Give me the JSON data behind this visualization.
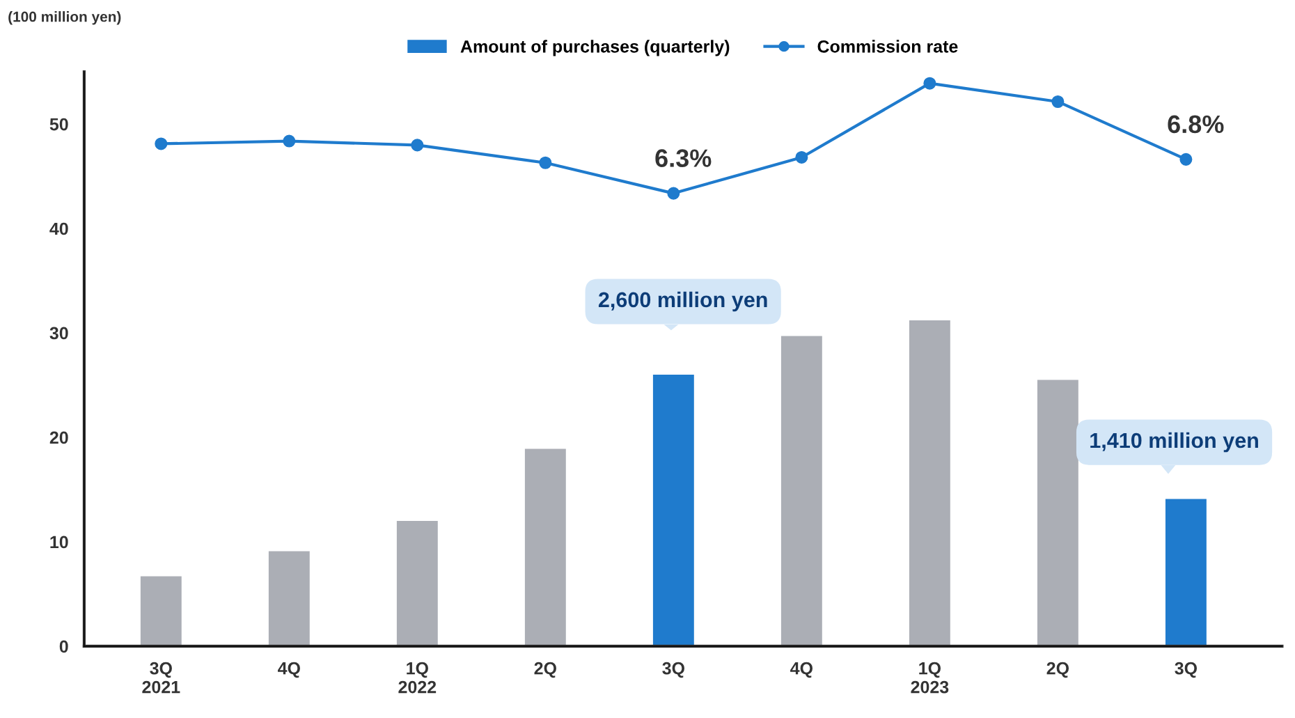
{
  "chart_data": {
    "type": "bar",
    "ylabel": "(100 million yen)",
    "categories": [
      "3Q\n2021",
      "4Q",
      "1Q\n2022",
      "2Q",
      "3Q",
      "4Q",
      "1Q\n2023",
      "2Q",
      "3Q"
    ],
    "series": [
      {
        "name": "Amount of purchases (quarterly)",
        "color": "#1f7bcd",
        "colors": [
          "#abaeb5",
          "#abaeb5",
          "#abaeb5",
          "#abaeb5",
          "#1f7bcd",
          "#abaeb5",
          "#abaeb5",
          "#abaeb5",
          "#1f7bcd"
        ],
        "values": [
          6.7,
          9.1,
          12.0,
          18.9,
          26.0,
          29.7,
          31.2,
          25.5,
          14.1
        ]
      },
      {
        "name": "Commission rate",
        "type": "line",
        "axis": "y2",
        "color": "#1f7bcd",
        "marker": "circle",
        "values": [
          7.03,
          7.07,
          7.01,
          6.75,
          6.3,
          6.83,
          7.92,
          7.65,
          6.8
        ],
        "value_labels": [
          null,
          null,
          null,
          null,
          "6.3%",
          null,
          null,
          null,
          "6.8%"
        ]
      }
    ],
    "ylim": [
      0,
      55
    ],
    "yticks": [
      0,
      10,
      20,
      30,
      40,
      50
    ],
    "y2lim": [
      -0.37,
      8.09
    ],
    "annotations": [
      "2,600 million yen",
      "1,410 million yen"
    ],
    "legend": "top",
    "grid": false
  }
}
